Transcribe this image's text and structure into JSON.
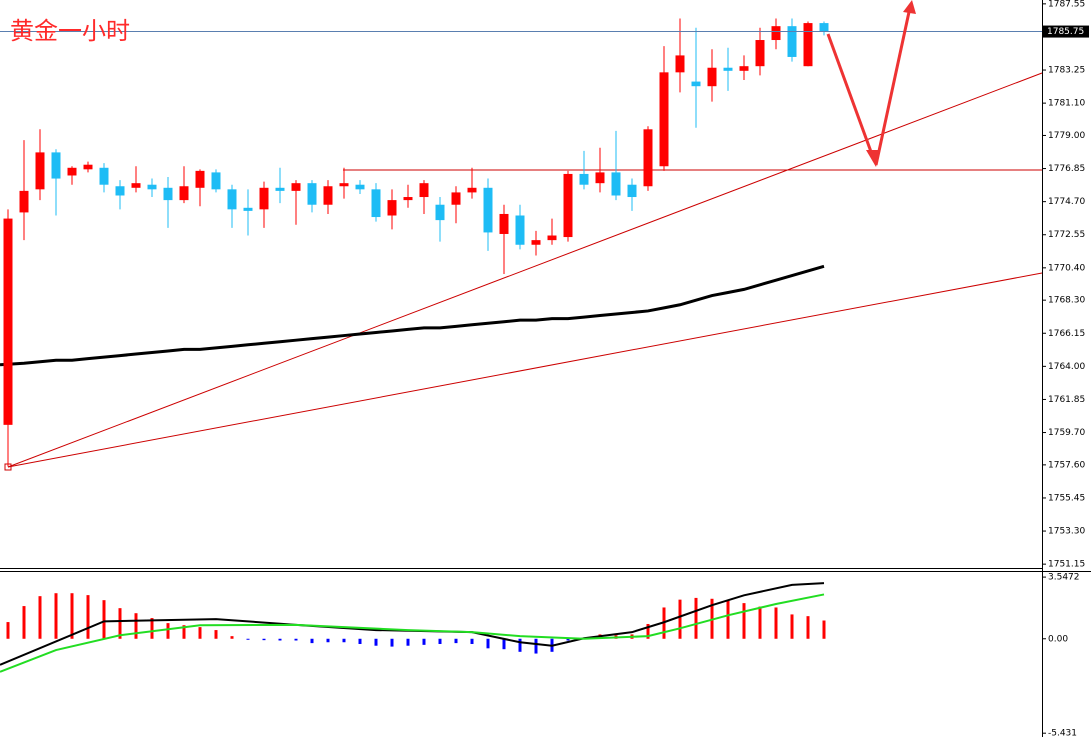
{
  "chart_data": [
    {
      "type": "candlestick",
      "title": "黄金一小时",
      "open": [
        1760.2,
        1774.0,
        1775.5,
        1777.9,
        1776.4,
        1776.8,
        1776.9,
        1775.7,
        1775.6,
        1775.8,
        1775.6,
        1774.8,
        1775.6,
        1776.6,
        1775.5,
        1774.3,
        1774.2,
        1775.6,
        1775.4,
        1775.9,
        1774.5,
        1775.7,
        1775.8,
        1775.5,
        1773.8,
        1774.8,
        1775.0,
        1774.5,
        1774.5,
        1775.3,
        1775.6,
        1772.6,
        1773.8,
        1771.9,
        1772.2,
        1772.4,
        1776.5,
        1775.9,
        1776.6,
        1775.8,
        1775.7,
        1777.0,
        1783.1,
        1782.5,
        1782.2,
        1783.4,
        1783.2,
        1783.5,
        1785.2,
        1786.1,
        1783.5,
        1786.3
      ],
      "high": [
        1774.2,
        1778.7,
        1779.4,
        1778.1,
        1777.0,
        1777.3,
        1777.2,
        1776.1,
        1777.0,
        1776.2,
        1776.3,
        1777.0,
        1776.8,
        1776.8,
        1775.8,
        1775.5,
        1776.0,
        1776.9,
        1776.1,
        1776.1,
        1776.1,
        1776.9,
        1776.1,
        1775.9,
        1775.5,
        1775.8,
        1776.1,
        1775.0,
        1775.7,
        1776.9,
        1776.2,
        1774.5,
        1774.5,
        1772.8,
        1773.6,
        1776.7,
        1778.0,
        1778.2,
        1779.3,
        1776.2,
        1779.6,
        1784.8,
        1786.6,
        1786.0,
        1784.6,
        1784.7,
        1784.2,
        1786.0,
        1786.6,
        1786.6,
        1786.4,
        1786.4
      ],
      "low": [
        1757.5,
        1772.2,
        1774.8,
        1773.8,
        1775.8,
        1776.6,
        1775.3,
        1774.2,
        1775.3,
        1775.0,
        1773.0,
        1774.6,
        1774.4,
        1775.3,
        1773.0,
        1772.5,
        1773.0,
        1774.6,
        1773.2,
        1774.0,
        1773.9,
        1774.9,
        1775.2,
        1773.4,
        1772.9,
        1774.3,
        1773.9,
        1772.1,
        1773.3,
        1774.9,
        1771.5,
        1770.0,
        1771.6,
        1771.2,
        1771.9,
        1772.1,
        1775.5,
        1775.3,
        1774.8,
        1774.1,
        1775.4,
        1776.7,
        1781.8,
        1779.5,
        1781.2,
        1781.9,
        1782.6,
        1782.9,
        1784.6,
        1783.8,
        1783.5,
        1785.5
      ],
      "close": [
        1773.6,
        1775.4,
        1777.9,
        1776.2,
        1776.9,
        1777.1,
        1775.8,
        1775.1,
        1775.9,
        1775.5,
        1774.8,
        1775.7,
        1776.7,
        1775.5,
        1774.2,
        1774.1,
        1775.6,
        1775.4,
        1775.9,
        1774.5,
        1775.7,
        1775.9,
        1775.5,
        1773.7,
        1774.8,
        1775.0,
        1775.9,
        1773.5,
        1775.3,
        1775.6,
        1772.7,
        1773.9,
        1771.9,
        1772.2,
        1772.5,
        1776.5,
        1775.8,
        1776.6,
        1775.1,
        1775.0,
        1779.4,
        1783.1,
        1784.2,
        1782.2,
        1783.4,
        1783.2,
        1783.5,
        1785.2,
        1786.1,
        1784.1,
        1786.3,
        1785.75
      ],
      "up_color": "#ff0000",
      "down_color": "#1ebcf5",
      "ma": {
        "color": "#000000",
        "values": [
          1764.1,
          1764.2,
          1764.3,
          1764.4,
          1764.4,
          1764.5,
          1764.6,
          1764.7,
          1764.8,
          1764.9,
          1765.0,
          1765.1,
          1765.1,
          1765.2,
          1765.3,
          1765.4,
          1765.5,
          1765.6,
          1765.7,
          1765.8,
          1765.9,
          1766.0,
          1766.1,
          1766.2,
          1766.3,
          1766.4,
          1766.5,
          1766.5,
          1766.6,
          1766.7,
          1766.8,
          1766.9,
          1767.0,
          1767.0,
          1767.1,
          1767.1,
          1767.2,
          1767.3,
          1767.4,
          1767.5,
          1767.6,
          1767.8,
          1768.0,
          1768.3,
          1768.6,
          1768.8,
          1769.0,
          1769.3,
          1769.6,
          1769.9,
          1770.2,
          1770.5
        ]
      },
      "current_price": 1785.75,
      "ylim": [
        1750.9,
        1787.8
      ],
      "yticks": [
        1787.55,
        1783.25,
        {
          "value": 1781.1,
          "label": "1781.10"
        },
        {
          "value": 1779,
          "label": "1779.00"
        },
        1776.85,
        {
          "value": 1774.7,
          "label": "1774.70"
        },
        1772.55,
        {
          "value": 1770.4,
          "label": "1770.40"
        },
        {
          "value": 1768.3,
          "label": "1768.30"
        },
        1766.15,
        {
          "value": 1764,
          "label": "1764.00"
        },
        1761.85,
        {
          "value": 1759.7,
          "label": "1759.70"
        },
        {
          "value": 1757.6,
          "label": "1757.60"
        },
        1755.45,
        {
          "value": 1753.3,
          "label": "1753.30"
        },
        1751.15
      ]
    },
    {
      "type": "macd",
      "histogram": {
        "up_color": "#ff0000",
        "down_color": "#0000ff",
        "values": [
          0.96,
          1.88,
          2.45,
          2.62,
          2.62,
          2.51,
          2.22,
          1.76,
          1.47,
          1.19,
          0.9,
          0.78,
          0.67,
          0.5,
          0.15,
          -0.05,
          -0.08,
          -0.1,
          -0.1,
          -0.25,
          -0.2,
          -0.2,
          -0.3,
          -0.4,
          -0.45,
          -0.4,
          -0.35,
          -0.3,
          -0.25,
          -0.3,
          -0.55,
          -0.6,
          -0.75,
          -0.85,
          -0.75,
          -0.1,
          0.05,
          0.25,
          0.2,
          0.25,
          0.85,
          1.8,
          2.25,
          2.35,
          2.3,
          2.2,
          2.05,
          1.85,
          1.8,
          1.4,
          1.3,
          1.05
        ]
      },
      "lines": [
        {
          "color": "#000000",
          "x": [
            0,
            6,
            13,
            18,
            23,
            29,
            32,
            34,
            36,
            39,
            41,
            44,
            46,
            49,
            51
          ],
          "values": [
            -1.5,
            1.0,
            1.13,
            0.8,
            0.5,
            0.38,
            -0.2,
            -0.4,
            0.03,
            0.38,
            0.95,
            1.93,
            2.5,
            3.1,
            3.2
          ]
        },
        {
          "color": "#22dd22",
          "x": [
            0,
            3,
            7,
            12,
            18,
            25,
            29,
            32,
            36,
            40,
            42,
            45,
            48,
            51
          ],
          "values": [
            -1.9,
            -0.65,
            0.2,
            0.78,
            0.8,
            0.5,
            0.38,
            0.15,
            0.0,
            0.15,
            0.6,
            1.35,
            2.0,
            2.55
          ]
        }
      ],
      "ylim": [
        -5.65,
        3.84
      ],
      "yticks": [
        3.5472,
        {
          "value": 0,
          "label": "0.00"
        },
        -5.431
      ]
    }
  ]
}
